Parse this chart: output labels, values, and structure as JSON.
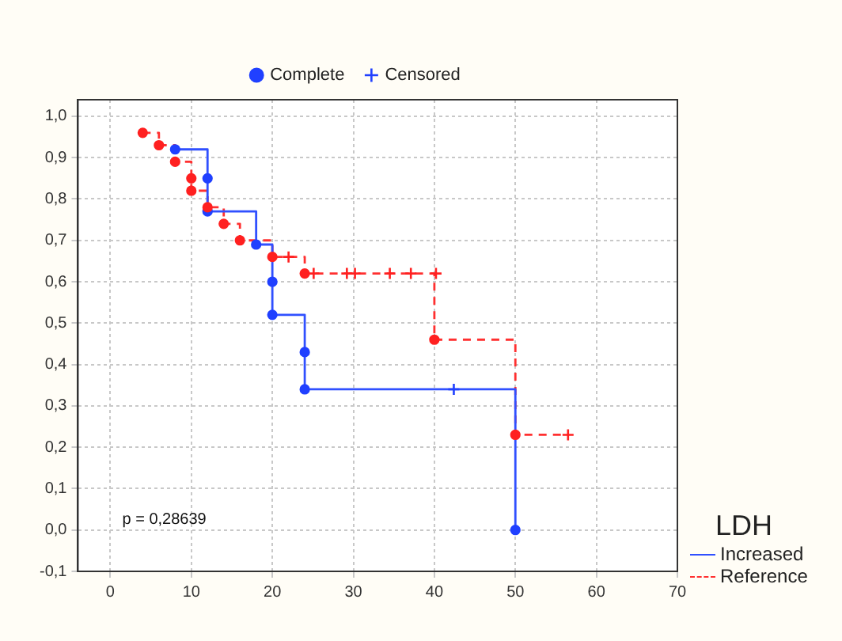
{
  "chart_data": {
    "type": "step",
    "legend_title": "LDH",
    "legend": "top",
    "grid": true,
    "xlim": [
      -4,
      70
    ],
    "xticks": [
      0,
      10,
      20,
      30,
      40,
      50,
      60,
      70
    ],
    "ylim": [
      -0.1,
      1.04
    ],
    "yticks": [
      {
        "value": -0.1,
        "label": "-0,1"
      },
      {
        "value": 0,
        "label": "0,0"
      },
      {
        "value": 0.1,
        "label": "0,1"
      },
      {
        "value": 0.2,
        "label": "0,2"
      },
      {
        "value": 0.3,
        "label": "0,3"
      },
      {
        "value": 0.4,
        "label": "0,4"
      },
      {
        "value": 0.5,
        "label": "0,5"
      },
      {
        "value": 0.6,
        "label": "0,6"
      },
      {
        "value": 0.7,
        "label": "0,7"
      },
      {
        "value": 0.8,
        "label": "0,8"
      },
      {
        "value": 0.9,
        "label": "0,9"
      },
      {
        "value": 1,
        "label": "1,0"
      }
    ],
    "annotations": [
      "p = 0,28639"
    ],
    "series": [
      {
        "name": "Increased",
        "color": "#3050ff",
        "line_style": "solid",
        "x": [
          8,
          12,
          18,
          20,
          24,
          50
        ],
        "values": [
          0.92,
          0.77,
          0.69,
          0.52,
          0.34,
          0
        ]
      },
      {
        "name": "Reference",
        "color": "#ff3030",
        "line_style": "dashed",
        "x": [
          4,
          6,
          8,
          10,
          12,
          14,
          16,
          20,
          24,
          40,
          50,
          56.5
        ],
        "values": [
          0.96,
          0.93,
          0.89,
          0.82,
          0.78,
          0.74,
          0.7,
          0.66,
          0.62,
          0.46,
          0.23,
          0.23
        ]
      },
      {
        "name": "Complete",
        "type": "scatter",
        "marker": "circle",
        "color": "#2040ff",
        "x": [
          8,
          12,
          12,
          18,
          20,
          20,
          24,
          24,
          50,
          4,
          6,
          8,
          10,
          10,
          12,
          14,
          16,
          20,
          24,
          40,
          50
        ],
        "values": [
          0.92,
          0.85,
          0.77,
          0.69,
          0.6,
          0.52,
          0.43,
          0.34,
          0,
          0.96,
          0.93,
          0.89,
          0.85,
          0.82,
          0.78,
          0.74,
          0.7,
          0.66,
          0.62,
          0.46,
          0.23
        ],
        "colors": [
          "#2040ff",
          "#2040ff",
          "#2040ff",
          "#2040ff",
          "#2040ff",
          "#2040ff",
          "#2040ff",
          "#2040ff",
          "#2040ff",
          "#ff2020",
          "#ff2020",
          "#ff2020",
          "#ff2020",
          "#ff2020",
          "#ff2020",
          "#ff2020",
          "#ff2020",
          "#ff2020",
          "#ff2020",
          "#ff2020",
          "#ff2020"
        ]
      },
      {
        "name": "Censored",
        "type": "scatter",
        "marker": "cross",
        "color": "#2040ff",
        "x": [
          42.4,
          22,
          25.1,
          29.2,
          30.2,
          34.5,
          37.1,
          40.2,
          56.5
        ],
        "values": [
          0.34,
          0.66,
          0.62,
          0.62,
          0.62,
          0.62,
          0.62,
          0.62,
          0.23
        ],
        "colors": [
          "#2040ff",
          "#ff2020",
          "#ff2020",
          "#ff2020",
          "#ff2020",
          "#ff2020",
          "#ff2020",
          "#ff2020",
          "#ff2020"
        ]
      }
    ]
  }
}
